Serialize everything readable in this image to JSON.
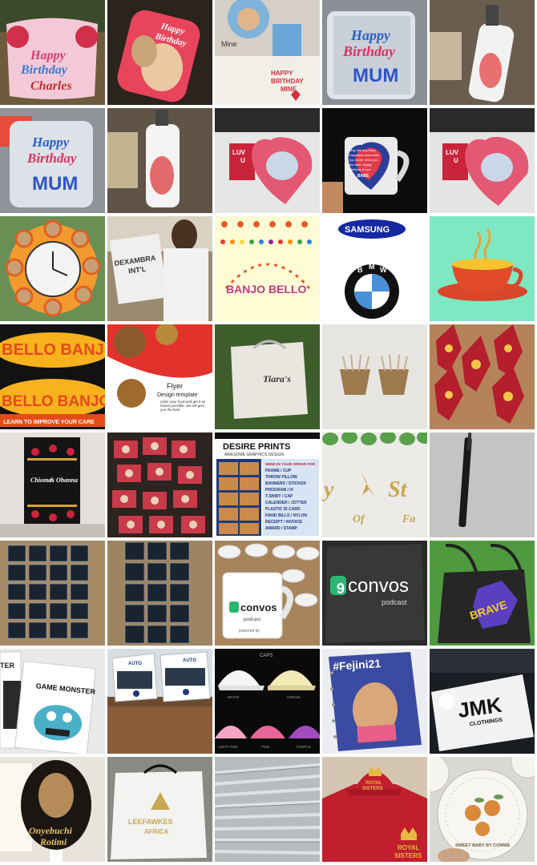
{
  "tiles": [
    {
      "id": "pillow-birthday",
      "texts": [
        "Happy",
        "Birthday",
        "Charles"
      ]
    },
    {
      "id": "mug-happy-birthday-photo",
      "texts": [
        "Happy",
        "Birthday"
      ]
    },
    {
      "id": "birthday-gift-pack",
      "texts": [
        "Mine",
        "HAPPY",
        "BIRTHDAY",
        "MINE"
      ]
    },
    {
      "id": "mug-mum",
      "texts": [
        "Happy",
        "Birthday",
        "MUM"
      ]
    },
    {
      "id": "water-bottle-photo",
      "texts": []
    },
    {
      "id": "mug-mum-closeup",
      "texts": [
        "Happy",
        "Birthday",
        "MUM"
      ]
    },
    {
      "id": "water-bottle-closeup",
      "texts": []
    },
    {
      "id": "heart-pillow-card",
      "texts": [
        "LUV",
        "U"
      ]
    },
    {
      "id": "mug-love-message",
      "texts": [
        "May this day bring",
        "happiness and make",
        "you smile. Wish you",
        "the best. Happy",
        "Birthday to you",
        "BABE"
      ]
    },
    {
      "id": "heart-pillow-card-2",
      "texts": [
        "LUV",
        "U"
      ]
    },
    {
      "id": "photo-wall-clock",
      "texts": []
    },
    {
      "id": "printed-tshirt-customer",
      "texts": [
        "DEXAMBRA",
        "INT'L"
      ]
    },
    {
      "id": "banjo-bello-logo",
      "texts": [
        "BANJO BELLO"
      ]
    },
    {
      "id": "samsung-bmw-logos",
      "texts": [
        "SAMSUNG",
        "B",
        "M",
        "W"
      ]
    },
    {
      "id": "cup-illustration",
      "texts": []
    },
    {
      "id": "bello-banjo-3d-text",
      "texts": [
        "BELLO BANJO",
        "BELLO BANJO",
        "LEARN TO IMPROVE YOUR CARE"
      ]
    },
    {
      "id": "food-flyer-template",
      "texts": [
        "Come feel the difference",
        "Flyer",
        "Design template",
        "order your food and get it as fastas possible. we will give you the best"
      ]
    },
    {
      "id": "tiaras-paper-bag",
      "texts": [
        "Tiara's"
      ]
    },
    {
      "id": "wooden-pens-holder",
      "texts": []
    },
    {
      "id": "award-plaques",
      "texts": []
    },
    {
      "id": "wedding-program-cover",
      "texts": [
        "Chioma",
        "&",
        "Ohanna"
      ]
    },
    {
      "id": "program-stacks",
      "texts": []
    },
    {
      "id": "desire-prints-flyer",
      "texts": [
        "DESIRE PRINTS",
        "AWESOME GRAPHICS DESIGN",
        "SEND IN YOUR ORDER FOR",
        "FRAME / CUP",
        "THROW PILLOW",
        "BANNERS / STICKER",
        "PROGRAM / IV",
        "T-SHIRT / CAP",
        "CALENDER / JOTTER",
        "PLASTIC ID CARD",
        "HAND BILLS / NYLON",
        "RECEIPT / INVOICE",
        "AWARD / STAMP"
      ]
    },
    {
      "id": "gold-signage",
      "texts": [
        "y",
        "St",
        "Of",
        "Fa"
      ]
    },
    {
      "id": "branded-pen",
      "texts": []
    },
    {
      "id": "black-booklets-grid",
      "texts": []
    },
    {
      "id": "black-booklets-grid-2",
      "texts": []
    },
    {
      "id": "convos-mugs",
      "texts": [
        "convos",
        "podcast",
        "powered by"
      ]
    },
    {
      "id": "convos-pillow",
      "texts": [
        "convos",
        "podcast"
      ]
    },
    {
      "id": "brave-tote-bag",
      "texts": [
        "BRAVE"
      ]
    },
    {
      "id": "game-monster-prints",
      "texts": [
        "GAME MONSTER",
        "TER"
      ]
    },
    {
      "id": "auto-desk-calendar",
      "texts": [
        "AUTO",
        "AUTO"
      ]
    },
    {
      "id": "caps-mockup",
      "texts": [
        "CAPS",
        "WHITE",
        "CREAM",
        "LIGHT PINK",
        "PINK",
        "PURPLE"
      ]
    },
    {
      "id": "fejini-notebook",
      "texts": [
        "#Fejini21"
      ]
    },
    {
      "id": "jmk-clothings-sign",
      "texts": [
        "JMK",
        "CLOTHINGS"
      ]
    },
    {
      "id": "wedding-fan-program",
      "texts": [
        "Onyebuchi",
        "Rotimi"
      ]
    },
    {
      "id": "leefawkes-gift-bag",
      "texts": [
        "LEEFAWKES",
        "AFRICA"
      ]
    },
    {
      "id": "silver-pens",
      "texts": []
    },
    {
      "id": "royal-sisters-shirt-cap",
      "texts": [
        "ROYAL",
        "SISTERS",
        "ROYAL",
        "SISTERS"
      ]
    },
    {
      "id": "baby-plates",
      "texts": [
        "SWEET BABY BY CONNIE"
      ]
    }
  ],
  "colors": {
    "background": "#ffffff"
  }
}
